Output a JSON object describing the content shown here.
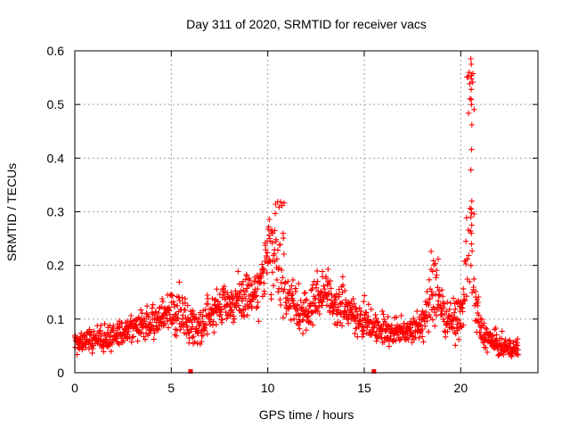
{
  "chart_data": {
    "type": "scatter",
    "title": "Day 311 of 2020, SRMTID for receiver vacs",
    "xlabel": "GPS time / hours",
    "ylabel": "SRMTID / TECUs",
    "xlim": [
      0,
      24
    ],
    "ylim": [
      0,
      0.6
    ],
    "x_ticks": [
      0,
      5,
      10,
      15,
      20
    ],
    "y_ticks": [
      0,
      0.1,
      0.2,
      0.3,
      0.4,
      0.5,
      0.6
    ],
    "x_tick_labels": [
      "0",
      "5",
      "10",
      "15",
      "20"
    ],
    "y_tick_labels": [
      "0",
      "0.1",
      "0.2",
      "0.3",
      "0.4",
      "0.5",
      "0.6"
    ],
    "grid": true,
    "marker": "+",
    "series_color": "#ff0000",
    "baseline_markers_x": [
      6.0,
      15.5
    ],
    "envelope": {
      "x": [
        0,
        0.5,
        1,
        1.5,
        2,
        2.5,
        3,
        3.5,
        4,
        4.5,
        5,
        5.5,
        6,
        6.5,
        7,
        7.5,
        8,
        8.5,
        9,
        9.5,
        10,
        10.5,
        11,
        11.5,
        12,
        12.5,
        13,
        13.5,
        14,
        14.5,
        15,
        15.5,
        16,
        16.5,
        17,
        17.5,
        18,
        18.5,
        19,
        19.5,
        20,
        20.5,
        21,
        21.5,
        22,
        22.5,
        23
      ],
      "y": [
        0.05,
        0.06,
        0.065,
        0.06,
        0.07,
        0.075,
        0.08,
        0.09,
        0.09,
        0.1,
        0.12,
        0.11,
        0.09,
        0.09,
        0.11,
        0.12,
        0.13,
        0.13,
        0.14,
        0.15,
        0.22,
        0.18,
        0.14,
        0.12,
        0.11,
        0.14,
        0.15,
        0.13,
        0.12,
        0.11,
        0.1,
        0.09,
        0.08,
        0.075,
        0.08,
        0.08,
        0.09,
        0.13,
        0.12,
        0.1,
        0.1,
        0.2,
        0.08,
        0.06,
        0.05,
        0.045,
        0.045
      ],
      "spread": [
        0.025,
        0.025,
        0.025,
        0.03,
        0.03,
        0.03,
        0.035,
        0.035,
        0.035,
        0.04,
        0.05,
        0.05,
        0.04,
        0.04,
        0.045,
        0.045,
        0.05,
        0.05,
        0.05,
        0.05,
        0.07,
        0.07,
        0.05,
        0.05,
        0.045,
        0.05,
        0.05,
        0.05,
        0.05,
        0.045,
        0.04,
        0.035,
        0.035,
        0.03,
        0.03,
        0.03,
        0.04,
        0.05,
        0.05,
        0.04,
        0.04,
        0.12,
        0.035,
        0.03,
        0.025,
        0.02,
        0.02
      ]
    },
    "points_per_hour": 62,
    "peaks": [
      {
        "x": 10.1,
        "y": 0.3
      },
      {
        "x": 10.6,
        "y": 0.32
      },
      {
        "x": 18.6,
        "y": 0.24
      },
      {
        "x": 20.45,
        "y": 0.3
      },
      {
        "x": 20.55,
        "y": 0.58
      }
    ],
    "spike_x": 20.55,
    "spike_values": [
      0.585,
      0.575,
      0.548,
      0.528,
      0.5,
      0.462,
      0.416,
      0.378,
      0.32,
      0.305,
      0.29,
      0.275,
      0.26,
      0.24,
      0.2
    ]
  }
}
